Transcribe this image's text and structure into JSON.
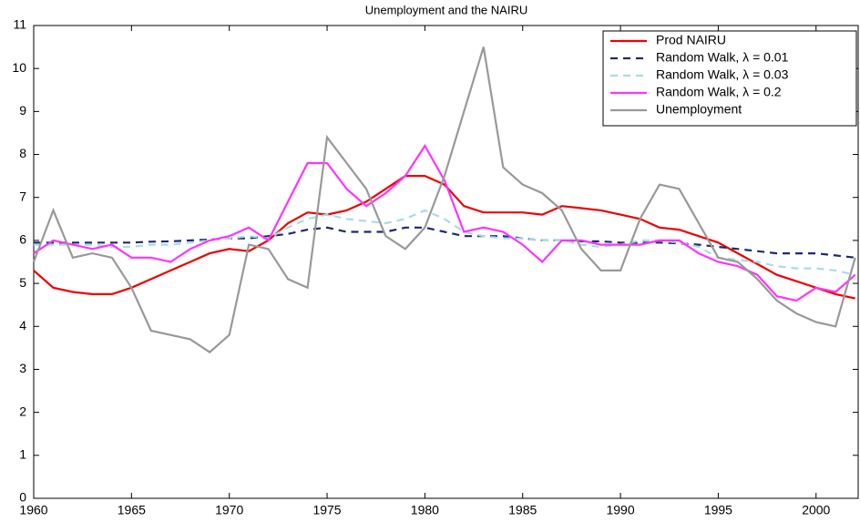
{
  "chart_data": {
    "type": "line",
    "title": "Unemployment and the NAIRU",
    "x": [
      1960,
      1961,
      1962,
      1963,
      1964,
      1965,
      1966,
      1967,
      1968,
      1969,
      1970,
      1971,
      1972,
      1973,
      1974,
      1975,
      1976,
      1977,
      1978,
      1979,
      1980,
      1981,
      1982,
      1983,
      1984,
      1985,
      1986,
      1987,
      1988,
      1989,
      1990,
      1991,
      1992,
      1993,
      1994,
      1995,
      1996,
      1997,
      1998,
      1999,
      2000,
      2001,
      2002
    ],
    "xlim": [
      1960,
      2002.2
    ],
    "xticks": [
      1960,
      1965,
      1970,
      1975,
      1980,
      1985,
      1990,
      1995,
      2000
    ],
    "ylim": [
      0,
      11
    ],
    "yticks": [
      0,
      1,
      2,
      3,
      4,
      5,
      6,
      7,
      8,
      9,
      10,
      11
    ],
    "legend": "upper right",
    "series": [
      {
        "name": "Prod NAIRU",
        "color": "#ee0000",
        "linestyle": "solid",
        "values": [
          5.3,
          4.9,
          4.8,
          4.75,
          4.75,
          4.9,
          5.1,
          5.3,
          5.5,
          5.7,
          5.8,
          5.75,
          6.0,
          6.4,
          6.65,
          6.6,
          6.7,
          6.9,
          7.2,
          7.5,
          7.5,
          7.3,
          6.8,
          6.65,
          6.65,
          6.65,
          6.6,
          6.8,
          6.75,
          6.7,
          6.6,
          6.5,
          6.3,
          6.25,
          6.1,
          5.95,
          5.7,
          5.45,
          5.2,
          5.05,
          4.9,
          4.75,
          4.65
        ]
      },
      {
        "name": "Random Walk, λ = 0.01",
        "color": "#1f2a6e",
        "linestyle": "dashed",
        "values": [
          5.95,
          5.95,
          5.95,
          5.95,
          5.95,
          5.95,
          5.97,
          5.98,
          6.0,
          6.02,
          6.05,
          6.05,
          6.1,
          6.15,
          6.25,
          6.3,
          6.2,
          6.2,
          6.2,
          6.3,
          6.3,
          6.2,
          6.1,
          6.1,
          6.1,
          6.05,
          6.0,
          6.0,
          5.98,
          5.98,
          5.95,
          5.95,
          5.95,
          5.93,
          5.9,
          5.85,
          5.8,
          5.75,
          5.7,
          5.7,
          5.7,
          5.65,
          5.6
        ]
      },
      {
        "name": "Random Walk, λ = 0.03",
        "color": "#a8dce6",
        "linestyle": "dashed",
        "values": [
          5.9,
          5.9,
          5.9,
          5.9,
          5.85,
          5.85,
          5.9,
          5.9,
          5.95,
          6.0,
          6.05,
          6.1,
          6.05,
          6.3,
          6.5,
          6.6,
          6.5,
          6.45,
          6.4,
          6.5,
          6.7,
          6.5,
          6.2,
          6.1,
          6.05,
          6.05,
          6.0,
          6.0,
          5.9,
          5.85,
          5.9,
          6.0,
          6.0,
          5.95,
          5.85,
          5.6,
          5.55,
          5.5,
          5.4,
          5.35,
          5.35,
          5.3,
          5.2
        ]
      },
      {
        "name": "Random Walk, λ =  0.2",
        "color": "#ff33ff",
        "linestyle": "solid",
        "values": [
          5.7,
          6.0,
          5.9,
          5.8,
          5.9,
          5.6,
          5.6,
          5.5,
          5.8,
          6.0,
          6.1,
          6.3,
          6.0,
          6.9,
          7.8,
          7.8,
          7.2,
          6.8,
          7.1,
          7.5,
          8.2,
          7.4,
          6.2,
          6.3,
          6.2,
          5.9,
          5.5,
          6.0,
          6.0,
          5.9,
          5.9,
          5.9,
          6.0,
          6.0,
          5.7,
          5.5,
          5.4,
          5.2,
          4.7,
          4.6,
          4.9,
          4.8,
          5.2
        ]
      },
      {
        "name": "Unemployment",
        "color": "#999999",
        "linestyle": "solid",
        "values": [
          5.5,
          6.7,
          5.6,
          5.7,
          5.6,
          4.9,
          3.9,
          3.8,
          3.7,
          3.4,
          3.8,
          5.9,
          5.8,
          5.1,
          4.9,
          8.4,
          7.8,
          7.2,
          6.1,
          5.8,
          6.3,
          7.5,
          9.0,
          10.5,
          7.7,
          7.3,
          7.1,
          6.7,
          5.8,
          5.3,
          5.3,
          6.5,
          7.3,
          7.2,
          6.4,
          5.6,
          5.5,
          5.1,
          4.6,
          4.3,
          4.1,
          4.0,
          5.6
        ]
      }
    ]
  }
}
